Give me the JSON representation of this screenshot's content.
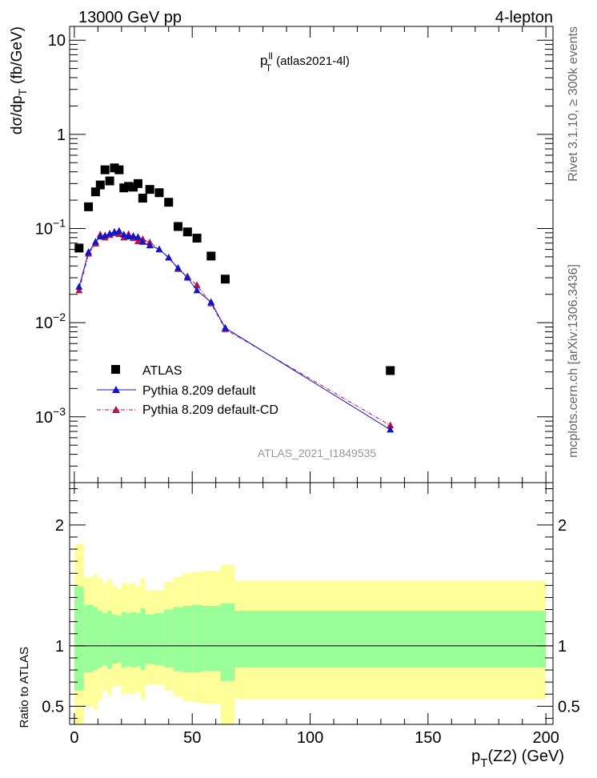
{
  "header": {
    "left": "13000 GeV pp",
    "right": "4-lepton"
  },
  "side_labels": {
    "rivet": "Rivet 3.1.10, ≥ 300k events",
    "mcplots": "mcplots.cern.ch [arXiv:1306.3436]"
  },
  "colors": {
    "data": "#000000",
    "pythia_default": "#1515c8",
    "pythia_cd": "#b4154a",
    "band_inner": "#99ff99",
    "band_outer": "#ffff99",
    "watermark": "#999999"
  },
  "chart_data": [
    {
      "type": "scatter",
      "panel": "main",
      "title_main": "p",
      "title_sup": "ll",
      "title_sub": "T",
      "title_rest": "(atlas2021-4l)",
      "ylabel_main": "dσ/dp",
      "ylabel_sub": "T",
      "ylabel_rest": "(fb/GeV)",
      "yscale": "log",
      "xlim": [
        -2,
        203
      ],
      "ylim": [
        0.0002,
        14
      ],
      "ytick_labels": [
        {
          "value": 10,
          "base": "10",
          "exp": ""
        },
        {
          "value": 1,
          "base": "1",
          "exp": ""
        },
        {
          "value": 0.1,
          "base": "10",
          "exp": "−1"
        },
        {
          "value": 0.01,
          "base": "10",
          "exp": "−2"
        },
        {
          "value": 0.001,
          "base": "10",
          "exp": "−3"
        }
      ],
      "watermark": "ATLAS_2021_I1849535",
      "legend": {
        "position": "bottom-left",
        "entries": [
          "ATLAS",
          "Pythia 8.209 default",
          "Pythia 8.209 default-CD"
        ]
      },
      "series": [
        {
          "name": "ATLAS",
          "style": "square-markers",
          "x": [
            2,
            6,
            9,
            11,
            13,
            15,
            17,
            19,
            21,
            23,
            25,
            27,
            29,
            32,
            36,
            40,
            44,
            48,
            52,
            58,
            64,
            134
          ],
          "y": [
            0.062,
            0.17,
            0.245,
            0.29,
            0.42,
            0.32,
            0.44,
            0.42,
            0.27,
            0.28,
            0.275,
            0.3,
            0.21,
            0.26,
            0.24,
            0.19,
            0.105,
            0.092,
            0.079,
            0.051,
            0.029,
            0.0031
          ]
        },
        {
          "name": "Pythia 8.209 default",
          "style": "line-up-triangles",
          "x": [
            2,
            6,
            9,
            11,
            13,
            15,
            17,
            19,
            21,
            23,
            25,
            27,
            29,
            32,
            36,
            40,
            44,
            48,
            52,
            58,
            64,
            134
          ],
          "y": [
            0.024,
            0.056,
            0.072,
            0.082,
            0.084,
            0.088,
            0.092,
            0.094,
            0.086,
            0.082,
            0.083,
            0.081,
            0.072,
            0.066,
            0.06,
            0.049,
            0.038,
            0.03,
            0.022,
            0.0165,
            0.0088,
            0.00073
          ]
        },
        {
          "name": "Pythia 8.209 default-CD",
          "style": "dashdot-up-triangles",
          "x": [
            2,
            6,
            9,
            11,
            13,
            15,
            17,
            19,
            21,
            23,
            25,
            27,
            29,
            32,
            36,
            40,
            44,
            48,
            52,
            58,
            64,
            134
          ],
          "y": [
            0.022,
            0.054,
            0.069,
            0.086,
            0.08,
            0.085,
            0.089,
            0.087,
            0.08,
            0.087,
            0.079,
            0.073,
            0.077,
            0.071,
            0.06,
            0.049,
            0.037,
            0.031,
            0.025,
            0.016,
            0.0085,
            0.00081
          ]
        }
      ]
    },
    {
      "type": "area",
      "panel": "ratio",
      "ylabel": "Ratio to ATLAS",
      "xlabel_main": "p",
      "xlabel_sub": "T",
      "xlabel_rest": "(Z2) (GeV)",
      "xlim": [
        -2,
        203
      ],
      "ylim": [
        0.35,
        2.35
      ],
      "xticks": [
        0,
        50,
        100,
        150,
        200
      ],
      "yticks": [
        0.5,
        1,
        2
      ],
      "reference_line": 1,
      "bins": [
        {
          "lo": 0,
          "hi": 4,
          "in_lo": 0.63,
          "in_hi": 1.49,
          "out_lo": 0.35,
          "out_hi": 1.84
        },
        {
          "lo": 4,
          "hi": 8,
          "in_lo": 0.78,
          "in_hi": 1.34,
          "out_lo": 0.5,
          "out_hi": 1.57
        },
        {
          "lo": 8,
          "hi": 10,
          "in_lo": 0.8,
          "in_hi": 1.32,
          "out_lo": 0.47,
          "out_hi": 1.59
        },
        {
          "lo": 10,
          "hi": 12,
          "in_lo": 0.82,
          "in_hi": 1.29,
          "out_lo": 0.55,
          "out_hi": 1.56
        },
        {
          "lo": 12,
          "hi": 14,
          "in_lo": 0.84,
          "in_hi": 1.27,
          "out_lo": 0.63,
          "out_hi": 1.52
        },
        {
          "lo": 14,
          "hi": 16,
          "in_lo": 0.81,
          "in_hi": 1.29,
          "out_lo": 0.59,
          "out_hi": 1.55
        },
        {
          "lo": 16,
          "hi": 18,
          "in_lo": 0.85,
          "in_hi": 1.26,
          "out_lo": 0.66,
          "out_hi": 1.5
        },
        {
          "lo": 18,
          "hi": 20,
          "in_lo": 0.86,
          "in_hi": 1.25,
          "out_lo": 0.67,
          "out_hi": 1.47
        },
        {
          "lo": 20,
          "hi": 22,
          "in_lo": 0.82,
          "in_hi": 1.28,
          "out_lo": 0.6,
          "out_hi": 1.52
        },
        {
          "lo": 22,
          "hi": 24,
          "in_lo": 0.83,
          "in_hi": 1.27,
          "out_lo": 0.61,
          "out_hi": 1.51
        },
        {
          "lo": 24,
          "hi": 26,
          "in_lo": 0.82,
          "in_hi": 1.28,
          "out_lo": 0.6,
          "out_hi": 1.52
        },
        {
          "lo": 26,
          "hi": 28,
          "in_lo": 0.83,
          "in_hi": 1.27,
          "out_lo": 0.62,
          "out_hi": 1.49
        },
        {
          "lo": 28,
          "hi": 30,
          "in_lo": 0.8,
          "in_hi": 1.31,
          "out_lo": 0.56,
          "out_hi": 1.56
        },
        {
          "lo": 30,
          "hi": 34,
          "in_lo": 0.85,
          "in_hi": 1.26,
          "out_lo": 0.68,
          "out_hi": 1.46
        },
        {
          "lo": 34,
          "hi": 38,
          "in_lo": 0.84,
          "in_hi": 1.27,
          "out_lo": 0.68,
          "out_hi": 1.46
        },
        {
          "lo": 38,
          "hi": 42,
          "in_lo": 0.82,
          "in_hi": 1.3,
          "out_lo": 0.63,
          "out_hi": 1.53
        },
        {
          "lo": 42,
          "hi": 46,
          "in_lo": 0.79,
          "in_hi": 1.32,
          "out_lo": 0.58,
          "out_hi": 1.57
        },
        {
          "lo": 46,
          "hi": 50,
          "in_lo": 0.78,
          "in_hi": 1.33,
          "out_lo": 0.54,
          "out_hi": 1.6
        },
        {
          "lo": 50,
          "hi": 54,
          "in_lo": 0.78,
          "in_hi": 1.34,
          "out_lo": 0.53,
          "out_hi": 1.61
        },
        {
          "lo": 54,
          "hi": 62,
          "in_lo": 0.79,
          "in_hi": 1.33,
          "out_lo": 0.52,
          "out_hi": 1.62
        },
        {
          "lo": 62,
          "hi": 68,
          "in_lo": 0.71,
          "in_hi": 1.35,
          "out_lo": 0.35,
          "out_hi": 1.67
        },
        {
          "lo": 68,
          "hi": 200,
          "in_lo": 0.82,
          "in_hi": 1.29,
          "out_lo": 0.56,
          "out_hi": 1.54
        }
      ]
    }
  ]
}
